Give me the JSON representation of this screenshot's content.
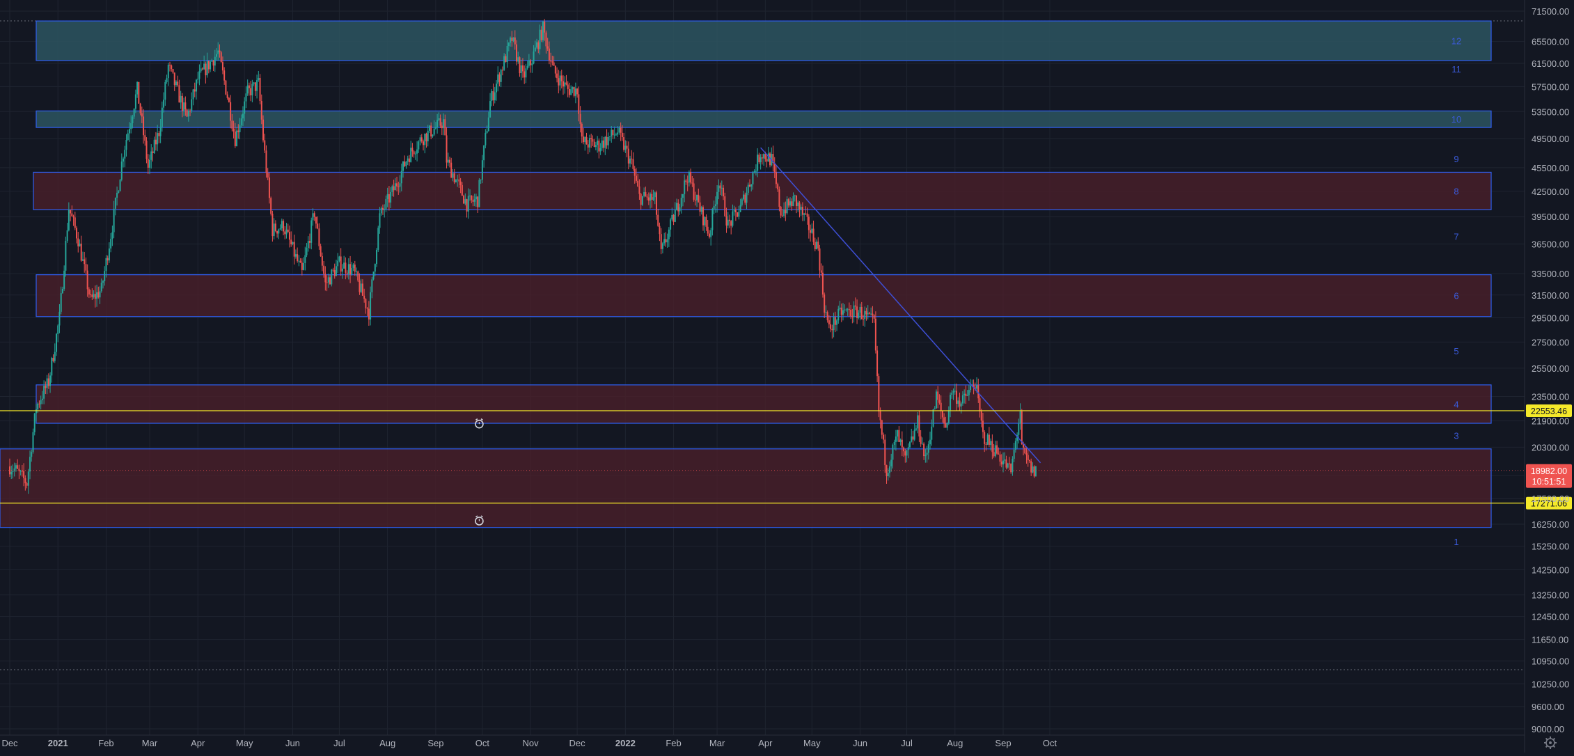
{
  "chart_data": {
    "type": "candlestick",
    "y_scale": "log",
    "ylim": [
      8650,
      71500
    ],
    "xlim": [
      "2020-12-01",
      "2022-10-08"
    ],
    "grid": true,
    "y_ticks": [
      "71500.00",
      "65500.00",
      "61500.00",
      "57500.00",
      "53500.00",
      "49500.00",
      "45500.00",
      "42500.00",
      "39500.00",
      "36500.00",
      "33500.00",
      "31500.00",
      "29500.00",
      "27500.00",
      "25500.00",
      "23500.00",
      "21900.00",
      "20300.00",
      "18700.00",
      "17500.00",
      "16250.00",
      "15250.00",
      "14250.00",
      "13250.00",
      "12450.00",
      "11650.00",
      "10950.00",
      "10250.00",
      "9600.00",
      "9000.00"
    ],
    "x_ticks": [
      {
        "label": "Dec",
        "date": "2020-12-01"
      },
      {
        "label": "2021",
        "date": "2021-01-01",
        "bold": true
      },
      {
        "label": "Feb",
        "date": "2021-02-01"
      },
      {
        "label": "Mar",
        "date": "2021-03-01"
      },
      {
        "label": "Apr",
        "date": "2021-04-01"
      },
      {
        "label": "May",
        "date": "2021-05-01"
      },
      {
        "label": "Jun",
        "date": "2021-06-01"
      },
      {
        "label": "Jul",
        "date": "2021-07-01"
      },
      {
        "label": "Aug",
        "date": "2021-08-01"
      },
      {
        "label": "Sep",
        "date": "2021-09-01"
      },
      {
        "label": "Oct",
        "date": "2021-10-01"
      },
      {
        "label": "Nov",
        "date": "2021-11-01"
      },
      {
        "label": "Dec",
        "date": "2021-12-01"
      },
      {
        "label": "2022",
        "date": "2022-01-01",
        "bold": true
      },
      {
        "label": "Feb",
        "date": "2022-02-01"
      },
      {
        "label": "Mar",
        "date": "2022-03-01"
      },
      {
        "label": "Apr",
        "date": "2022-04-01"
      },
      {
        "label": "May",
        "date": "2022-05-01"
      },
      {
        "label": "Jun",
        "date": "2022-06-01"
      },
      {
        "label": "Jul",
        "date": "2022-07-01"
      },
      {
        "label": "Aug",
        "date": "2022-08-01"
      },
      {
        "label": "Sep",
        "date": "2022-09-01"
      },
      {
        "label": "Oct",
        "date": "2022-10-01"
      }
    ],
    "price_path": [
      [
        "2020-12-01",
        19200
      ],
      [
        "2020-12-05",
        19000
      ],
      [
        "2020-12-12",
        18300
      ],
      [
        "2020-12-18",
        22800
      ],
      [
        "2020-12-26",
        24500
      ],
      [
        "2021-01-02",
        29500
      ],
      [
        "2021-01-08",
        40500
      ],
      [
        "2021-01-14",
        37000
      ],
      [
        "2021-01-22",
        31000
      ],
      [
        "2021-01-29",
        32000
      ],
      [
        "2021-02-05",
        38500
      ],
      [
        "2021-02-12",
        47500
      ],
      [
        "2021-02-21",
        57000
      ],
      [
        "2021-02-28",
        45500
      ],
      [
        "2021-03-07",
        50500
      ],
      [
        "2021-03-13",
        61000
      ],
      [
        "2021-03-25",
        52500
      ],
      [
        "2021-04-01",
        58800
      ],
      [
        "2021-04-14",
        63500
      ],
      [
        "2021-04-20",
        56000
      ],
      [
        "2021-04-25",
        49500
      ],
      [
        "2021-05-03",
        56500
      ],
      [
        "2021-05-10",
        58000
      ],
      [
        "2021-05-13",
        49500
      ],
      [
        "2021-05-19",
        38000
      ],
      [
        "2021-05-26",
        38500
      ],
      [
        "2021-06-07",
        33500
      ],
      [
        "2021-06-15",
        40000
      ],
      [
        "2021-06-22",
        32500
      ],
      [
        "2021-07-01",
        34500
      ],
      [
        "2021-07-10",
        33800
      ],
      [
        "2021-07-20",
        30000
      ],
      [
        "2021-07-27",
        39500
      ],
      [
        "2021-08-07",
        43500
      ],
      [
        "2021-08-14",
        47000
      ],
      [
        "2021-08-23",
        49500
      ],
      [
        "2021-09-06",
        52000
      ],
      [
        "2021-09-08",
        46500
      ],
      [
        "2021-09-21",
        41000
      ],
      [
        "2021-09-28",
        41500
      ],
      [
        "2021-10-06",
        55000
      ],
      [
        "2021-10-20",
        66000
      ],
      [
        "2021-10-27",
        59000
      ],
      [
        "2021-11-01",
        61500
      ],
      [
        "2021-11-09",
        68000
      ],
      [
        "2021-11-16",
        60000
      ],
      [
        "2021-11-25",
        57000
      ],
      [
        "2021-12-01",
        57000
      ],
      [
        "2021-12-04",
        49000
      ],
      [
        "2021-12-15",
        48500
      ],
      [
        "2021-12-27",
        50500
      ],
      [
        "2022-01-05",
        46000
      ],
      [
        "2022-01-10",
        41800
      ],
      [
        "2022-01-20",
        41500
      ],
      [
        "2022-01-24",
        35500
      ],
      [
        "2022-02-05",
        41500
      ],
      [
        "2022-02-10",
        44500
      ],
      [
        "2022-02-24",
        37500
      ],
      [
        "2022-03-02",
        44000
      ],
      [
        "2022-03-08",
        38500
      ],
      [
        "2022-03-16",
        40500
      ],
      [
        "2022-03-29",
        47500
      ],
      [
        "2022-04-05",
        46500
      ],
      [
        "2022-04-11",
        40000
      ],
      [
        "2022-04-20",
        41500
      ],
      [
        "2022-04-30",
        38000
      ],
      [
        "2022-05-05",
        36000
      ],
      [
        "2022-05-09",
        30500
      ],
      [
        "2022-05-12",
        28500
      ],
      [
        "2022-05-20",
        30000
      ],
      [
        "2022-06-01",
        30000
      ],
      [
        "2022-06-10",
        29000
      ],
      [
        "2022-06-13",
        22500
      ],
      [
        "2022-06-18",
        19000
      ],
      [
        "2022-06-25",
        21000
      ],
      [
        "2022-06-30",
        19500
      ],
      [
        "2022-07-08",
        21800
      ],
      [
        "2022-07-13",
        19500
      ],
      [
        "2022-07-20",
        23500
      ],
      [
        "2022-07-26",
        21500
      ],
      [
        "2022-07-30",
        24000
      ],
      [
        "2022-08-05",
        23000
      ],
      [
        "2022-08-14",
        24500
      ],
      [
        "2022-08-19",
        21000
      ],
      [
        "2022-08-28",
        20000
      ],
      [
        "2022-09-06",
        18900
      ],
      [
        "2022-09-12",
        22500
      ],
      [
        "2022-09-13",
        20100
      ],
      [
        "2022-09-20",
        18900
      ],
      [
        "2022-09-22",
        19000
      ]
    ],
    "zones": [
      {
        "label": "12",
        "top": 69500,
        "bottom": 62000,
        "color": "teal"
      },
      {
        "label": "10",
        "top": 53600,
        "bottom": 51100,
        "color": "teal"
      },
      {
        "label": "8",
        "top": 44900,
        "bottom": 40300,
        "color": "red"
      },
      {
        "label": "6",
        "top": 33400,
        "bottom": 29600,
        "color": "red"
      },
      {
        "label": "4",
        "top": 24300,
        "bottom": 21750,
        "color": "red"
      },
      {
        "label": "",
        "top": 20200,
        "bottom": 16100,
        "color": "red"
      }
    ],
    "level_labels": [
      {
        "label": "11",
        "price": 60500
      },
      {
        "label": "9",
        "price": 46700
      },
      {
        "label": "7",
        "price": 37300
      },
      {
        "label": "5",
        "price": 26800
      },
      {
        "label": "3",
        "price": 21000
      },
      {
        "label": "1",
        "price": 15450
      }
    ],
    "trendline": {
      "start": [
        "2022-03-29",
        48200
      ],
      "end": [
        "2022-09-25",
        19400
      ]
    },
    "alerts": [
      {
        "price": 22553.46,
        "label": "22553.46"
      },
      {
        "price": 17271.06,
        "label": "17271.06"
      }
    ],
    "alert_icons": [
      {
        "date": "2021-09-29",
        "price": 21700
      },
      {
        "date": "2021-09-29",
        "price": 16400
      }
    ],
    "current": {
      "price": 18982.0,
      "label": "18982.00",
      "countdown": "10:51:51"
    },
    "colors": {
      "background": "#131722",
      "grid": "#1f2430",
      "up": "#26a69a",
      "down": "#ef5350",
      "zone_teal": "#2d5560",
      "zone_red": "#4a1f2a",
      "zone_border": "#2f5ef0",
      "alert_line": "#f5e92a",
      "trendline": "#3e4fd6",
      "axis_text": "#b2b5be",
      "zone_label": "#3b5bdb"
    }
  }
}
